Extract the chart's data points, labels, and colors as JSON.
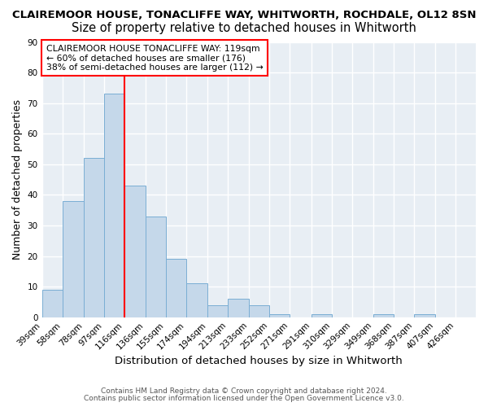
{
  "title1": "CLAIREMOOR HOUSE, TONACLIFFE WAY, WHITWORTH, ROCHDALE, OL12 8SN",
  "title2": "Size of property relative to detached houses in Whitworth",
  "xlabel": "Distribution of detached houses by size in Whitworth",
  "ylabel": "Number of detached properties",
  "bin_edges": [
    39,
    58,
    78,
    97,
    116,
    136,
    155,
    174,
    194,
    213,
    233,
    252,
    271,
    291,
    310,
    329,
    349,
    368,
    387,
    407,
    426
  ],
  "values": [
    9,
    38,
    52,
    73,
    43,
    33,
    19,
    11,
    4,
    6,
    4,
    1,
    0,
    1,
    0,
    0,
    1,
    0,
    1,
    0
  ],
  "tick_labels": [
    "39sqm",
    "58sqm",
    "78sqm",
    "97sqm",
    "116sqm",
    "136sqm",
    "155sqm",
    "174sqm",
    "194sqm",
    "213sqm",
    "233sqm",
    "252sqm",
    "271sqm",
    "291sqm",
    "310sqm",
    "329sqm",
    "349sqm",
    "368sqm",
    "387sqm",
    "407sqm",
    "426sqm"
  ],
  "bar_color": "#c5d8ea",
  "bar_edge_color": "#7aaed4",
  "red_line_x": 116,
  "annotation_text": "CLAIREMOOR HOUSE TONACLIFFE WAY: 119sqm\n← 60% of detached houses are smaller (176)\n38% of semi-detached houses are larger (112) →",
  "annotation_box_color": "white",
  "annotation_box_edge_color": "red",
  "ylim": [
    0,
    90
  ],
  "yticks": [
    0,
    10,
    20,
    30,
    40,
    50,
    60,
    70,
    80,
    90
  ],
  "background_color": "#e8eef4",
  "footer1": "Contains HM Land Registry data © Crown copyright and database right 2024.",
  "footer2": "Contains public sector information licensed under the Open Government Licence v3.0.",
  "title1_fontsize": 9.5,
  "title2_fontsize": 10.5,
  "tick_fontsize": 7.5,
  "xlabel_fontsize": 9.5,
  "ylabel_fontsize": 9.0
}
